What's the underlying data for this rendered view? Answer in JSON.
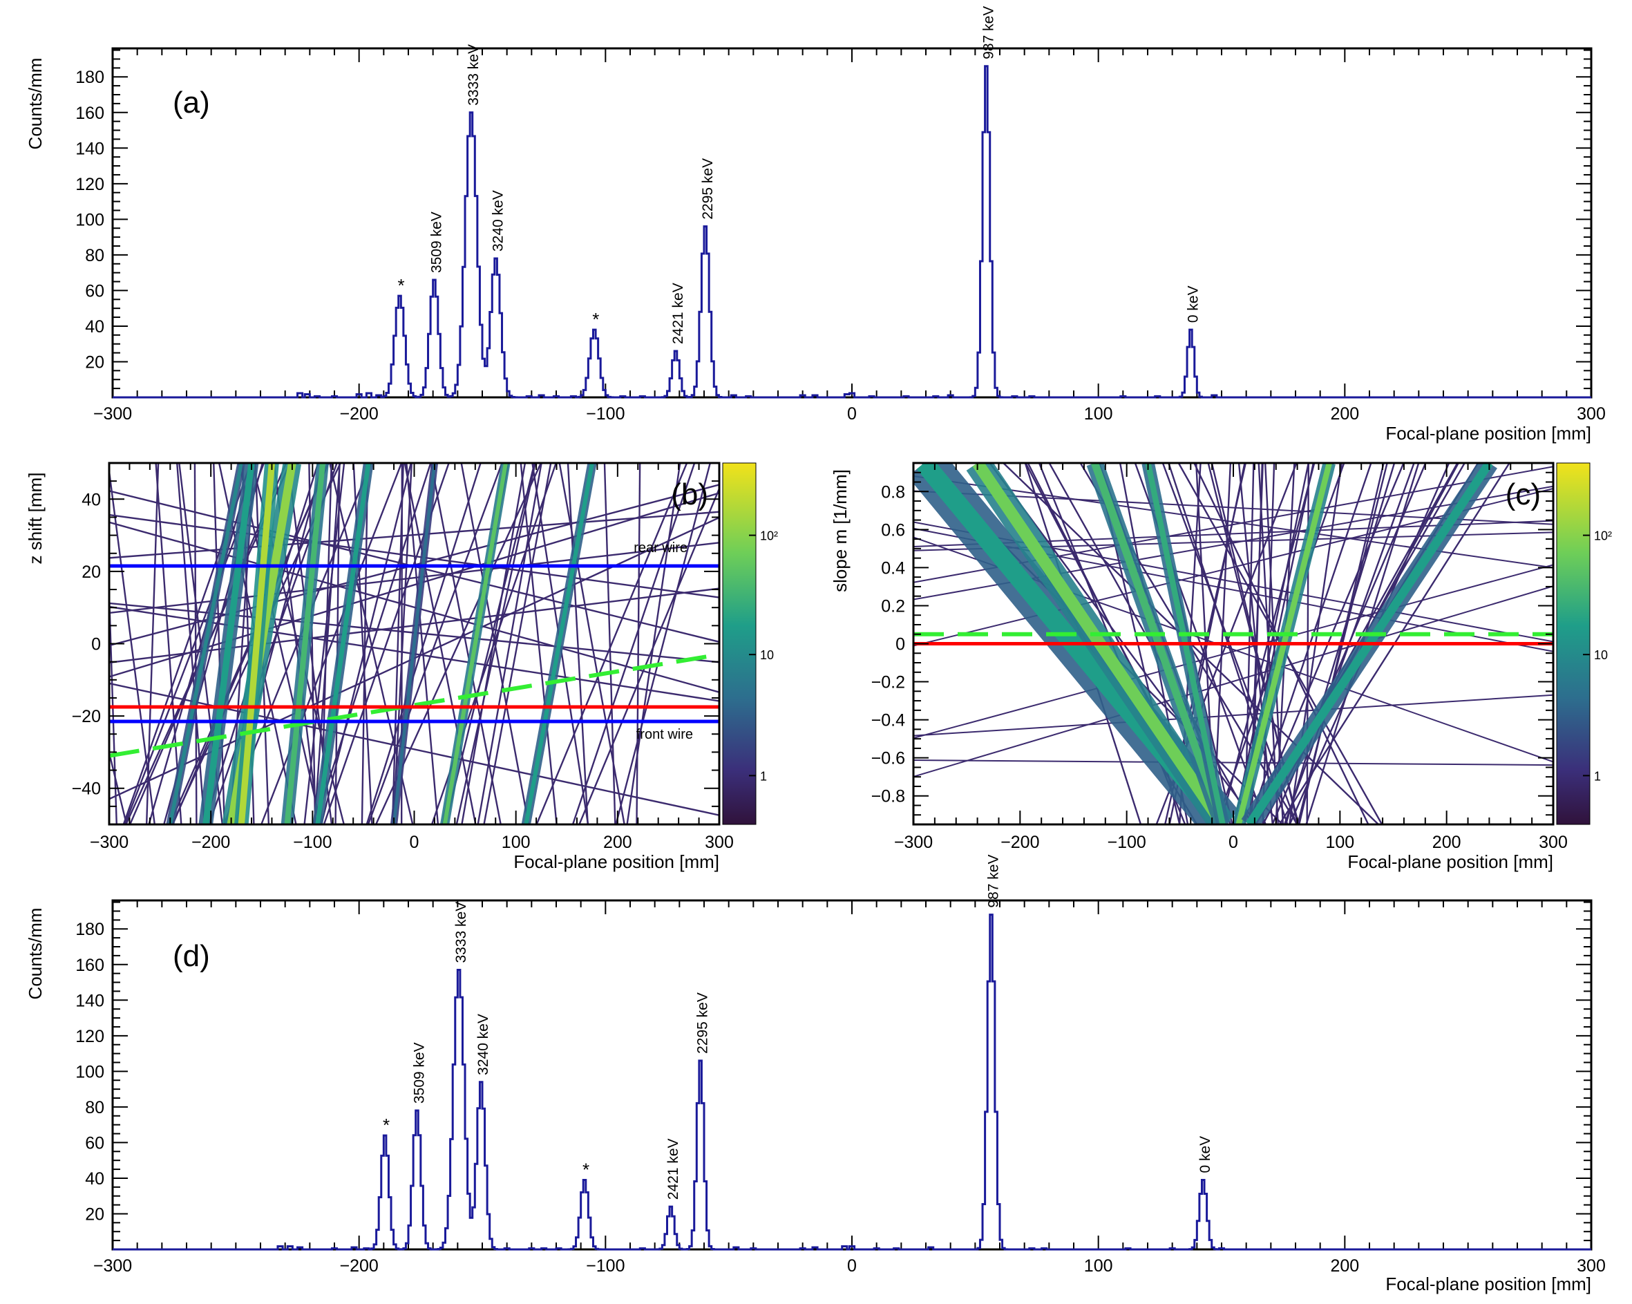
{
  "figure": {
    "description_labels": [
      "(a)",
      "(b)",
      "(c)",
      "(d)"
    ]
  },
  "chart_data": [
    {
      "id": "a",
      "type": "histogram",
      "panel_label": "(a)",
      "xlabel": "Focal-plane position [mm]",
      "ylabel": "Counts/mm",
      "xlim": [
        -300,
        300
      ],
      "ylim": [
        0,
        196
      ],
      "xticks": [
        -300,
        -200,
        -100,
        0,
        100,
        200,
        300
      ],
      "yticks": [
        20,
        40,
        60,
        80,
        100,
        120,
        140,
        160,
        180
      ],
      "peaks": [
        {
          "x": -183.5,
          "height": 57,
          "sigma": 2.0,
          "label": "*"
        },
        {
          "x": -169.5,
          "height": 66,
          "sigma": 1.8,
          "label": "3509 keV"
        },
        {
          "x": -154.5,
          "height": 160,
          "sigma": 2.4,
          "label": "3333 keV"
        },
        {
          "x": -144.5,
          "height": 78,
          "sigma": 2.0,
          "label": "3240 keV"
        },
        {
          "x": -104.5,
          "height": 38,
          "sigma": 1.9,
          "label": "*"
        },
        {
          "x": -71.5,
          "height": 26,
          "sigma": 1.5,
          "label": "2421 keV"
        },
        {
          "x": -59.5,
          "height": 96,
          "sigma": 1.7,
          "label": "2295 keV"
        },
        {
          "x": 54.5,
          "height": 186,
          "sigma": 1.5,
          "label": "987 keV"
        },
        {
          "x": 137.5,
          "height": 38,
          "sigma": 1.3,
          "label": "0 keV"
        }
      ],
      "background": [
        {
          "x": -224.0,
          "height": 4
        },
        {
          "x": -221.0,
          "height": 3
        },
        {
          "x": -217.0,
          "height": 1
        },
        {
          "x": -210.0,
          "height": 1
        },
        {
          "x": -200.0,
          "height": 3
        },
        {
          "x": -196.0,
          "height": 4
        },
        {
          "x": -192.0,
          "height": 2
        },
        {
          "x": -131.0,
          "height": 1
        },
        {
          "x": -126.0,
          "height": 2
        },
        {
          "x": -120.0,
          "height": 1
        },
        {
          "x": -113.0,
          "height": 1
        },
        {
          "x": -93.0,
          "height": 1
        },
        {
          "x": -85.0,
          "height": 1
        },
        {
          "x": -48.0,
          "height": 2
        },
        {
          "x": -42.0,
          "height": 1
        },
        {
          "x": -20.0,
          "height": 2
        },
        {
          "x": -15.0,
          "height": 2
        },
        {
          "x": -2.0,
          "height": 3
        },
        {
          "x": 0.0,
          "height": 4
        },
        {
          "x": 8.0,
          "height": 1
        },
        {
          "x": 22.0,
          "height": 1
        },
        {
          "x": 34.0,
          "height": 1
        },
        {
          "x": 40.0,
          "height": 2
        },
        {
          "x": 66.0,
          "height": 1
        },
        {
          "x": 73.0,
          "height": 1
        },
        {
          "x": 110.0,
          "height": 1
        },
        {
          "x": 124.0,
          "height": 1
        },
        {
          "x": 147.0,
          "height": 2
        }
      ]
    },
    {
      "id": "b",
      "type": "heatmap",
      "panel_label": "(b)",
      "xlabel": "Focal-plane position [mm]",
      "ylabel": "z shift [mm]",
      "xlim": [
        -300,
        300
      ],
      "ylim": [
        -50,
        50
      ],
      "xticks": [
        -300,
        -200,
        -100,
        0,
        100,
        200,
        300
      ],
      "yticks": [
        -40,
        -20,
        0,
        20,
        40
      ],
      "colorbar_ticks": [
        "1",
        "10",
        "10²"
      ],
      "bands": [
        {
          "x_bottom": -240,
          "x_top": -170,
          "width": 8,
          "intensity": 0.5
        },
        {
          "x_bottom": -205,
          "x_top": -160,
          "width": 14,
          "intensity": 0.6
        },
        {
          "x_bottom": -180,
          "x_top": -120,
          "width": 18,
          "intensity": 0.85
        },
        {
          "x_bottom": -170,
          "x_top": -140,
          "width": 14,
          "intensity": 0.9
        },
        {
          "x_bottom": -125,
          "x_top": -90,
          "width": 12,
          "intensity": 0.7
        },
        {
          "x_bottom": -95,
          "x_top": -45,
          "width": 10,
          "intensity": 0.6
        },
        {
          "x_bottom": -20,
          "x_top": 20,
          "width": 7,
          "intensity": 0.4
        },
        {
          "x_bottom": 30,
          "x_top": 90,
          "width": 9,
          "intensity": 0.75
        },
        {
          "x_bottom": 110,
          "x_top": 175,
          "width": 9,
          "intensity": 0.6
        }
      ],
      "lines": [
        {
          "label": "rear wire",
          "y": 21.5,
          "color": "#0000ff"
        },
        {
          "label": "front wire",
          "y": -21.5,
          "color": "#0000ff"
        },
        {
          "label": "",
          "y": -17.5,
          "color": "#ff0000"
        }
      ],
      "dashed_fit": {
        "x": [
          -300,
          300
        ],
        "y": [
          -31,
          -3
        ],
        "color": "#33ee33"
      }
    },
    {
      "id": "c",
      "type": "heatmap",
      "panel_label": "(c)",
      "xlabel": "Focal-plane position [mm]",
      "ylabel": "slope m [1/mm]",
      "xlim": [
        -300,
        300
      ],
      "ylim": [
        -0.95,
        0.95
      ],
      "xticks": [
        -300,
        -200,
        -100,
        0,
        100,
        200,
        300
      ],
      "yticks": [
        -0.8,
        -0.6,
        -0.4,
        -0.2,
        0,
        0.2,
        0.4,
        0.6,
        0.8
      ],
      "colorbar_ticks": [
        "1",
        "10",
        "10²"
      ],
      "bands": [
        {
          "x_top": -290,
          "x_bottom": -10,
          "width": 40,
          "intensity": 0.6
        },
        {
          "x_top": -240,
          "x_bottom": -10,
          "width": 25,
          "intensity": 0.8
        },
        {
          "x_top": -130,
          "x_bottom": -10,
          "width": 16,
          "intensity": 0.7
        },
        {
          "x_top": -80,
          "x_bottom": -10,
          "width": 12,
          "intensity": 0.65
        },
        {
          "x_top": 90,
          "x_bottom": 5,
          "width": 12,
          "intensity": 0.8
        },
        {
          "x_top": 240,
          "x_bottom": 15,
          "width": 18,
          "intensity": 0.6
        }
      ],
      "lines": [
        {
          "label": "",
          "y": 0.0,
          "color": "#ff0000"
        }
      ],
      "dashed_fit": {
        "x": [
          -300,
          300
        ],
        "y": [
          0.05,
          0.05
        ],
        "color": "#33ee33"
      }
    },
    {
      "id": "d",
      "type": "histogram",
      "panel_label": "(d)",
      "xlabel": "Focal-plane position [mm]",
      "ylabel": "Counts/mm",
      "xlim": [
        -300,
        300
      ],
      "ylim": [
        0,
        196
      ],
      "xticks": [
        -300,
        -200,
        -100,
        0,
        100,
        200,
        300
      ],
      "yticks": [
        20,
        40,
        60,
        80,
        100,
        120,
        140,
        160,
        180
      ],
      "peaks": [
        {
          "x": -189.5,
          "height": 64,
          "sigma": 1.6,
          "label": "*"
        },
        {
          "x": -176.5,
          "height": 78,
          "sigma": 1.6,
          "label": "3509 keV"
        },
        {
          "x": -159.5,
          "height": 157,
          "sigma": 2.2,
          "label": "3333 keV"
        },
        {
          "x": -150.5,
          "height": 94,
          "sigma": 1.7,
          "label": "3240 keV"
        },
        {
          "x": -108.5,
          "height": 39,
          "sigma": 1.6,
          "label": "*"
        },
        {
          "x": -73.5,
          "height": 24,
          "sigma": 1.4,
          "label": "2421 keV"
        },
        {
          "x": -61.5,
          "height": 106,
          "sigma": 1.4,
          "label": "2295 keV"
        },
        {
          "x": 56.5,
          "height": 188,
          "sigma": 1.5,
          "label": "987 keV"
        },
        {
          "x": 142.5,
          "height": 39,
          "sigma": 1.5,
          "label": "0 keV"
        }
      ],
      "background": [
        {
          "x": -232.0,
          "height": 3
        },
        {
          "x": -228.0,
          "height": 3
        },
        {
          "x": -224.0,
          "height": 2
        },
        {
          "x": -210.0,
          "height": 1
        },
        {
          "x": -202.0,
          "height": 2
        },
        {
          "x": -197.0,
          "height": 1
        },
        {
          "x": -140.0,
          "height": 1
        },
        {
          "x": -130.0,
          "height": 1
        },
        {
          "x": -125.0,
          "height": 1
        },
        {
          "x": -119.0,
          "height": 1
        },
        {
          "x": -85.0,
          "height": 1
        },
        {
          "x": -47.0,
          "height": 2
        },
        {
          "x": -40.0,
          "height": 1
        },
        {
          "x": -20.0,
          "height": 1
        },
        {
          "x": -15.0,
          "height": 2
        },
        {
          "x": -3.0,
          "height": 3
        },
        {
          "x": 0.0,
          "height": 3
        },
        {
          "x": 10.0,
          "height": 1
        },
        {
          "x": 18.0,
          "height": 1
        },
        {
          "x": 32.0,
          "height": 2
        },
        {
          "x": 73.0,
          "height": 1
        },
        {
          "x": 78.0,
          "height": 1
        },
        {
          "x": 112.0,
          "height": 1
        },
        {
          "x": 130.0,
          "height": 1
        },
        {
          "x": 150.0,
          "height": 1
        }
      ]
    }
  ]
}
